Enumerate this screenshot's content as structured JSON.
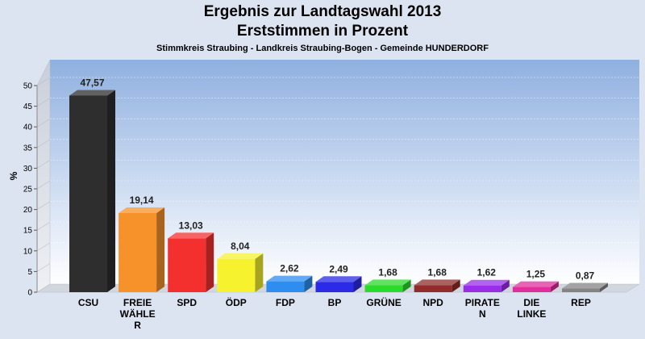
{
  "header": {
    "title": "Ergebnis zur Landtagswahl 2013",
    "subtitle": "Erststimmen in Prozent",
    "caption": "Stimmkreis Straubing - Landkreis Straubing-Bogen - Gemeinde HUNDERDORF"
  },
  "chart_data": {
    "type": "bar",
    "title": "Ergebnis zur Landtagswahl 2013",
    "subtitle": "Erststimmen in Prozent",
    "xlabel": "",
    "ylabel": "%",
    "ylim": [
      0,
      50
    ],
    "yticks": [
      0,
      5,
      10,
      15,
      20,
      25,
      30,
      35,
      40,
      45,
      50
    ],
    "grid": true,
    "categories": [
      "CSU",
      "FREIE WÄHLE R",
      "SPD",
      "ÖDP",
      "FDP",
      "BP",
      "GRÜNE",
      "NPD",
      "PIRATE N",
      "DIE LINKE",
      "REP"
    ],
    "category_lines": [
      [
        "CSU"
      ],
      [
        "FREIE",
        "WÄHLE",
        "R"
      ],
      [
        "SPD"
      ],
      [
        "ÖDP"
      ],
      [
        "FDP"
      ],
      [
        "BP"
      ],
      [
        "GRÜNE"
      ],
      [
        "NPD"
      ],
      [
        "PIRATE",
        "N"
      ],
      [
        "DIE",
        "LINKE"
      ],
      [
        "REP"
      ]
    ],
    "values": [
      47.57,
      19.14,
      13.03,
      8.04,
      2.62,
      2.49,
      1.68,
      1.68,
      1.62,
      1.25,
      0.87
    ],
    "value_labels": [
      "47,57",
      "19,14",
      "13,03",
      "8,04",
      "2,62",
      "2,49",
      "1,68",
      "1,68",
      "1,62",
      "1,25",
      "0,87"
    ],
    "colors": [
      "#2e2e2e",
      "#f7922b",
      "#f4302f",
      "#f6f22e",
      "#2d8ef0",
      "#2a2ae8",
      "#2bdb2b",
      "#922b2b",
      "#9a2ee8",
      "#e02f9c",
      "#848484"
    ]
  }
}
